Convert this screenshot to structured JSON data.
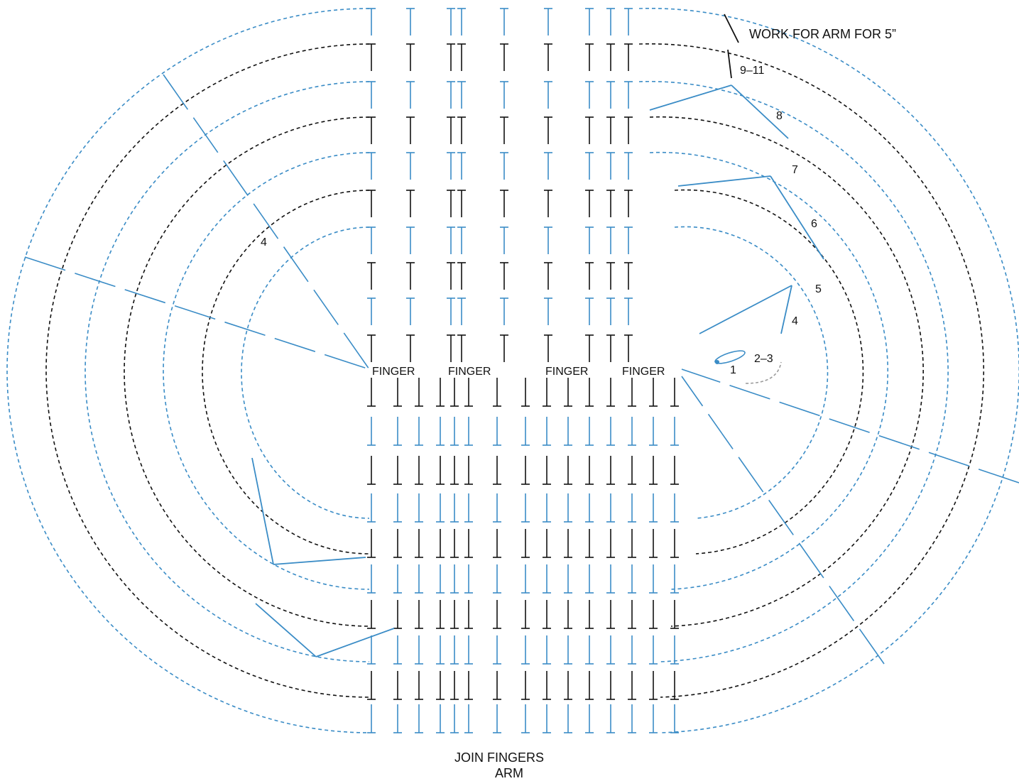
{
  "colors": {
    "blue": "#3a8cc6",
    "black": "#111111",
    "grey": "#9a9a9a"
  },
  "labels": {
    "finger": "FINGER",
    "work_for_arm": "WORK FOR ARM FOR 5”",
    "join_fingers": "JOIN FINGERS",
    "arm": "ARM"
  },
  "round_numbers": {
    "r1": "1",
    "r2_3": "2–3",
    "r4": "4",
    "r5": "5",
    "r6": "6",
    "r7": "7",
    "r8": "8",
    "r9_11": "9–11",
    "r4_left": "4"
  },
  "rounds": [
    {
      "color": "blue"
    },
    {
      "color": "black"
    },
    {
      "color": "blue"
    },
    {
      "color": "black"
    },
    {
      "color": "blue"
    },
    {
      "color": "black"
    },
    {
      "color": "blue"
    },
    {
      "color": "black"
    },
    {
      "color": "blue"
    },
    {
      "color": "black"
    },
    {
      "color": "blue"
    },
    {
      "color": "black"
    }
  ]
}
